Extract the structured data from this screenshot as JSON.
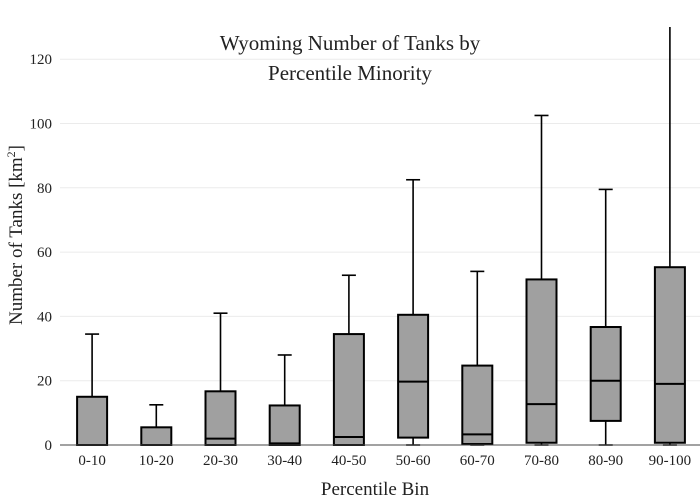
{
  "chart_data": {
    "type": "box",
    "title": [
      "Wyoming Number of Tanks by",
      "Percentile Minority"
    ],
    "xlabel": "Percentile Bin",
    "ylabel": "Number of Tanks  [km",
    "ylabel_sup": "2",
    "ylabel_end": "]",
    "ylim": [
      0,
      130
    ],
    "yticks": [
      0,
      20,
      40,
      60,
      80,
      100,
      120
    ],
    "grid": true,
    "box_color": "#a0a0a0",
    "categories": [
      "0-10",
      "10-20",
      "20-30",
      "30-40",
      "40-50",
      "50-60",
      "60-70",
      "70-80",
      "80-90",
      "90-100"
    ],
    "boxes": [
      {
        "min": 0,
        "q1": 0,
        "median": 0,
        "q3": 15,
        "max": 34.5
      },
      {
        "min": 0,
        "q1": 0,
        "median": 0,
        "q3": 5.5,
        "max": 12.5
      },
      {
        "min": 0,
        "q1": 0,
        "median": 2,
        "q3": 16.7,
        "max": 41
      },
      {
        "min": 0,
        "q1": 0,
        "median": 0.5,
        "q3": 12.3,
        "max": 28
      },
      {
        "min": 0,
        "q1": 0,
        "median": 2.5,
        "q3": 34.5,
        "max": 52.8
      },
      {
        "min": 0,
        "q1": 2.3,
        "median": 19.7,
        "q3": 40.5,
        "max": 82.5
      },
      {
        "min": 0,
        "q1": 0.3,
        "median": 3.3,
        "q3": 24.7,
        "max": 54
      },
      {
        "min": 0,
        "q1": 0.7,
        "median": 12.7,
        "q3": 51.5,
        "max": 102.5
      },
      {
        "min": 0,
        "q1": 7.5,
        "median": 20,
        "q3": 36.7,
        "max": 79.5
      },
      {
        "min": 0,
        "q1": 0.7,
        "median": 19,
        "q3": 55.3,
        "max": 130
      }
    ]
  }
}
